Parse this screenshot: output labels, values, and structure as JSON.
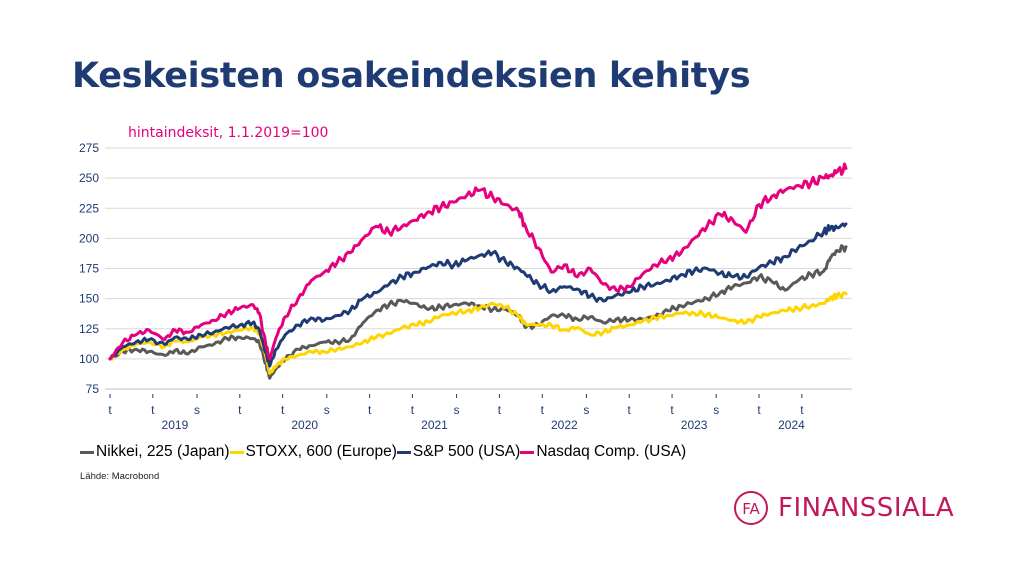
{
  "title": "Keskeisten osakeindeksien kehitys",
  "subtitle": "hintaindeksit, 1.1.2019=100",
  "source": "Lähde: Macrobond",
  "logo": {
    "mark": "FA",
    "name": "FINANSSIALA",
    "color": "#c2185b"
  },
  "chart_data": {
    "type": "line",
    "title": "Keskeisten osakeindeksien kehitys",
    "subtitle": "hintaindeksit, 1.1.2019=100",
    "ylim": [
      75,
      275
    ],
    "yticks": [
      75,
      100,
      125,
      150,
      175,
      200,
      225,
      250,
      275
    ],
    "xlim": [
      2019.0,
      2024.67
    ],
    "quarter_marks": [
      {
        "x": 2019.0,
        "label": "t"
      },
      {
        "x": 2019.33,
        "label": "t"
      },
      {
        "x": 2019.67,
        "label": "s"
      },
      {
        "x": 2020.0,
        "label": "t"
      },
      {
        "x": 2020.33,
        "label": "t"
      },
      {
        "x": 2020.67,
        "label": "s"
      },
      {
        "x": 2021.0,
        "label": "t"
      },
      {
        "x": 2021.33,
        "label": "t"
      },
      {
        "x": 2021.67,
        "label": "s"
      },
      {
        "x": 2022.0,
        "label": "t"
      },
      {
        "x": 2022.33,
        "label": "t"
      },
      {
        "x": 2022.67,
        "label": "s"
      },
      {
        "x": 2023.0,
        "label": "t"
      },
      {
        "x": 2023.33,
        "label": "t"
      },
      {
        "x": 2023.67,
        "label": "s"
      },
      {
        "x": 2024.0,
        "label": "t"
      },
      {
        "x": 2024.33,
        "label": "t"
      }
    ],
    "year_labels": [
      {
        "x": 2019.5,
        "label": "2019"
      },
      {
        "x": 2020.5,
        "label": "2020"
      },
      {
        "x": 2021.5,
        "label": "2021"
      },
      {
        "x": 2022.5,
        "label": "2022"
      },
      {
        "x": 2023.5,
        "label": "2023"
      },
      {
        "x": 2024.25,
        "label": "2024"
      }
    ],
    "grid": true,
    "legend_position": "bottom",
    "series": [
      {
        "name": "Nikkei, 225 (Japan)",
        "color": "#595959",
        "x": [
          2019.0,
          2019.1,
          2019.2,
          2019.3,
          2019.42,
          2019.5,
          2019.6,
          2019.7,
          2019.8,
          2019.9,
          2020.0,
          2020.1,
          2020.15,
          2020.2,
          2020.23,
          2020.28,
          2020.35,
          2020.45,
          2020.55,
          2020.65,
          2020.75,
          2020.85,
          2020.95,
          2021.05,
          2021.15,
          2021.25,
          2021.35,
          2021.45,
          2021.55,
          2021.65,
          2021.75,
          2021.85,
          2021.95,
          2022.05,
          2022.15,
          2022.2,
          2022.3,
          2022.4,
          2022.5,
          2022.6,
          2022.7,
          2022.8,
          2022.9,
          2023.0,
          2023.1,
          2023.2,
          2023.3,
          2023.4,
          2023.5,
          2023.6,
          2023.7,
          2023.8,
          2023.9,
          2024.0,
          2024.1,
          2024.2,
          2024.3,
          2024.4,
          2024.5,
          2024.55,
          2024.6,
          2024.67
        ],
        "y": [
          100,
          106,
          108,
          106,
          103,
          107,
          104,
          110,
          112,
          117,
          118,
          117,
          114,
          96,
          84,
          92,
          100,
          108,
          111,
          114,
          114,
          116,
          130,
          140,
          145,
          148,
          146,
          141,
          143,
          145,
          146,
          144,
          141,
          141,
          136,
          126,
          128,
          136,
          136,
          133,
          135,
          130,
          133,
          132,
          133,
          135,
          140,
          144,
          147,
          150,
          155,
          160,
          163,
          168,
          164,
          157,
          165,
          170,
          173,
          184,
          190,
          193
        ]
      },
      {
        "name": "STOXX, 600 (Europe)",
        "color": "#ffd500",
        "x": [
          2019.0,
          2019.1,
          2019.2,
          2019.3,
          2019.42,
          2019.5,
          2019.6,
          2019.7,
          2019.8,
          2019.9,
          2020.0,
          2020.1,
          2020.15,
          2020.2,
          2020.23,
          2020.28,
          2020.35,
          2020.45,
          2020.55,
          2020.65,
          2020.75,
          2020.85,
          2020.95,
          2021.05,
          2021.15,
          2021.25,
          2021.35,
          2021.45,
          2021.55,
          2021.65,
          2021.75,
          2021.85,
          2021.95,
          2022.05,
          2022.15,
          2022.2,
          2022.3,
          2022.4,
          2022.5,
          2022.6,
          2022.7,
          2022.8,
          2022.9,
          2023.0,
          2023.1,
          2023.2,
          2023.3,
          2023.4,
          2023.5,
          2023.6,
          2023.7,
          2023.8,
          2023.9,
          2024.0,
          2024.1,
          2024.2,
          2024.3,
          2024.4,
          2024.5,
          2024.55,
          2024.6,
          2024.67
        ],
        "y": [
          100,
          108,
          112,
          114,
          110,
          115,
          114,
          118,
          120,
          122,
          124,
          126,
          122,
          102,
          88,
          94,
          100,
          103,
          106,
          106,
          108,
          110,
          114,
          118,
          121,
          126,
          128,
          131,
          136,
          138,
          140,
          142,
          146,
          143,
          135,
          129,
          128,
          128,
          124,
          126,
          120,
          122,
          126,
          128,
          131,
          134,
          136,
          138,
          138,
          137,
          134,
          132,
          130,
          135,
          138,
          140,
          142,
          144,
          146,
          151,
          152,
          154
        ]
      },
      {
        "name": "S&P 500 (USA)",
        "color": "#1f3b73",
        "x": [
          2019.0,
          2019.1,
          2019.2,
          2019.3,
          2019.42,
          2019.5,
          2019.6,
          2019.7,
          2019.8,
          2019.9,
          2020.0,
          2020.1,
          2020.15,
          2020.2,
          2020.23,
          2020.28,
          2020.35,
          2020.45,
          2020.55,
          2020.65,
          2020.75,
          2020.85,
          2020.95,
          2021.05,
          2021.15,
          2021.25,
          2021.35,
          2021.45,
          2021.55,
          2021.65,
          2021.75,
          2021.85,
          2021.95,
          2022.05,
          2022.15,
          2022.2,
          2022.3,
          2022.4,
          2022.5,
          2022.6,
          2022.7,
          2022.8,
          2022.9,
          2023.0,
          2023.1,
          2023.2,
          2023.3,
          2023.4,
          2023.5,
          2023.6,
          2023.7,
          2023.8,
          2023.9,
          2024.0,
          2024.1,
          2024.2,
          2024.3,
          2024.4,
          2024.5,
          2024.55,
          2024.6,
          2024.67
        ],
        "y": [
          100,
          110,
          114,
          116,
          112,
          118,
          116,
          120,
          122,
          126,
          128,
          130,
          124,
          105,
          94,
          108,
          120,
          128,
          134,
          132,
          136,
          140,
          150,
          155,
          162,
          168,
          172,
          176,
          180,
          178,
          182,
          186,
          188,
          180,
          175,
          170,
          162,
          156,
          160,
          158,
          152,
          148,
          153,
          155,
          160,
          162,
          165,
          170,
          173,
          175,
          171,
          168,
          168,
          176,
          180,
          185,
          192,
          198,
          206,
          208,
          209,
          212
        ]
      },
      {
        "name": "Nasdaq Comp. (USA)",
        "color": "#e6007e",
        "x": [
          2019.0,
          2019.1,
          2019.2,
          2019.3,
          2019.42,
          2019.5,
          2019.6,
          2019.7,
          2019.8,
          2019.9,
          2020.0,
          2020.1,
          2020.15,
          2020.2,
          2020.23,
          2020.28,
          2020.35,
          2020.45,
          2020.55,
          2020.65,
          2020.75,
          2020.85,
          2020.95,
          2021.05,
          2021.15,
          2021.25,
          2021.35,
          2021.45,
          2021.55,
          2021.65,
          2021.75,
          2021.85,
          2021.95,
          2022.05,
          2022.15,
          2022.2,
          2022.3,
          2022.4,
          2022.5,
          2022.6,
          2022.7,
          2022.8,
          2022.9,
          2023.0,
          2023.1,
          2023.2,
          2023.3,
          2023.4,
          2023.5,
          2023.6,
          2023.7,
          2023.8,
          2023.9,
          2024.0,
          2024.1,
          2024.2,
          2024.3,
          2024.4,
          2024.5,
          2024.55,
          2024.6,
          2024.67
        ],
        "y": [
          100,
          114,
          120,
          124,
          116,
          124,
          122,
          128,
          132,
          138,
          142,
          145,
          138,
          112,
          100,
          118,
          135,
          150,
          165,
          172,
          180,
          188,
          200,
          210,
          205,
          210,
          215,
          222,
          226,
          230,
          236,
          240,
          234,
          228,
          222,
          210,
          192,
          172,
          178,
          168,
          175,
          162,
          157,
          160,
          170,
          178,
          183,
          188,
          200,
          210,
          220,
          215,
          205,
          228,
          235,
          240,
          244,
          246,
          250,
          252,
          255,
          258
        ]
      }
    ]
  }
}
